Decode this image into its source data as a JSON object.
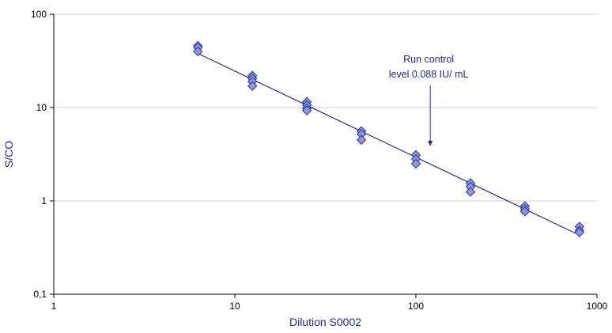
{
  "chart_data": {
    "type": "scatter",
    "title": "",
    "xlabel": "Dilution  S0002",
    "ylabel": "S/CO",
    "xscale": "log",
    "yscale": "log",
    "xlim": [
      1,
      1000
    ],
    "ylim": [
      0.1,
      100
    ],
    "x_ticks": [
      {
        "value": 1,
        "label": "1"
      },
      {
        "value": 10,
        "label": "10"
      },
      {
        "value": 100,
        "label": "100"
      },
      {
        "value": 1000,
        "label": "1000"
      }
    ],
    "y_ticks": [
      {
        "value": 0.1,
        "label": "0,1"
      },
      {
        "value": 1,
        "label": "1"
      },
      {
        "value": 10,
        "label": "10"
      },
      {
        "value": 100,
        "label": "100"
      }
    ],
    "grid": "horizontal",
    "colors": {
      "marker_fill": "#8f96dd",
      "marker_stroke": "#2b3590",
      "line": "#1f2a8f",
      "text": "#1f2a8f",
      "grid": "#cfcfcf"
    },
    "series": [
      {
        "marker": "diamond",
        "points": [
          {
            "x": 6.25,
            "y": 46
          },
          {
            "x": 6.25,
            "y": 44
          },
          {
            "x": 6.25,
            "y": 40
          },
          {
            "x": 12.5,
            "y": 22
          },
          {
            "x": 12.5,
            "y": 20.5
          },
          {
            "x": 12.5,
            "y": 19
          },
          {
            "x": 12.5,
            "y": 17
          },
          {
            "x": 25,
            "y": 11.5
          },
          {
            "x": 25,
            "y": 10.6
          },
          {
            "x": 25,
            "y": 9.8
          },
          {
            "x": 25,
            "y": 9.3
          },
          {
            "x": 50,
            "y": 5.6
          },
          {
            "x": 50,
            "y": 5.2
          },
          {
            "x": 50,
            "y": 4.5
          },
          {
            "x": 100,
            "y": 3.1
          },
          {
            "x": 100,
            "y": 2.8
          },
          {
            "x": 100,
            "y": 2.5
          },
          {
            "x": 200,
            "y": 1.55
          },
          {
            "x": 200,
            "y": 1.42
          },
          {
            "x": 200,
            "y": 1.25
          },
          {
            "x": 400,
            "y": 0.88
          },
          {
            "x": 400,
            "y": 0.82
          },
          {
            "x": 400,
            "y": 0.77
          },
          {
            "x": 800,
            "y": 0.53
          },
          {
            "x": 800,
            "y": 0.48
          },
          {
            "x": 800,
            "y": 0.46
          }
        ]
      }
    ],
    "trendline": {
      "x_start": 6.25,
      "y_start": 38,
      "x_end": 800,
      "y_end": 0.43
    },
    "annotation": {
      "lines": [
        "Run control",
        "level  0.088 IU/ mL"
      ],
      "arrow_target_x": 120,
      "arrow_target_y": 3.85
    }
  }
}
